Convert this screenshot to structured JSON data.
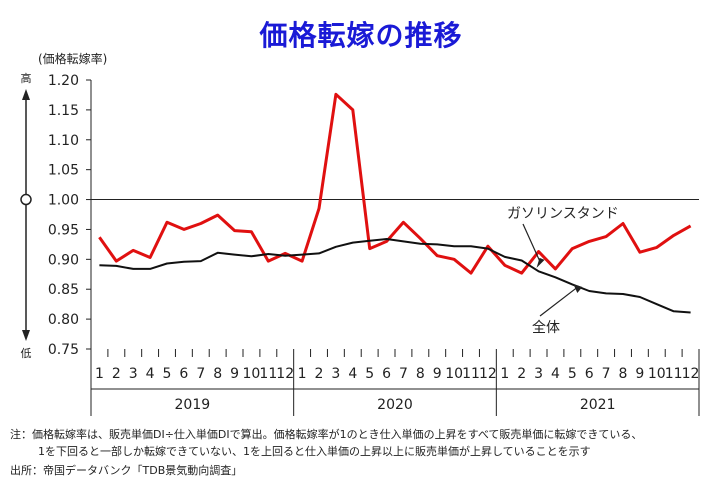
{
  "chart_data": {
    "type": "line",
    "title": "価格転嫁の推移",
    "ylabel": "(価格転嫁率)",
    "high_label": "高",
    "low_label": "低",
    "ylim": [
      0.75,
      1.2
    ],
    "yticks": [
      1.2,
      1.15,
      1.1,
      1.05,
      1.0,
      0.95,
      0.9,
      0.85,
      0.8,
      0.75
    ],
    "ytick_labels": [
      "1.20",
      "1.15",
      "1.10",
      "1.05",
      "1.00",
      "0.95",
      "0.90",
      "0.85",
      "0.80",
      "0.75"
    ],
    "reference_line": 1.0,
    "months": [
      "1",
      "2",
      "3",
      "4",
      "5",
      "6",
      "7",
      "8",
      "9",
      "10",
      "11",
      "12",
      "1",
      "2",
      "3",
      "4",
      "5",
      "6",
      "7",
      "8",
      "9",
      "10",
      "11",
      "12",
      "1",
      "2",
      "3",
      "4",
      "5",
      "6",
      "7",
      "8",
      "9",
      "10",
      "11",
      "12"
    ],
    "years": [
      "2019",
      "2020",
      "2021"
    ],
    "series": [
      {
        "name": "ガソリンスタンド",
        "color": "#e01010",
        "values": [
          0.937,
          0.897,
          0.915,
          0.903,
          0.962,
          0.95,
          0.96,
          0.974,
          0.948,
          0.946,
          0.897,
          0.91,
          0.897,
          0.985,
          1.176,
          1.15,
          0.918,
          0.93,
          0.962,
          0.935,
          0.906,
          0.9,
          0.877,
          0.922,
          0.89,
          0.877,
          0.913,
          0.884,
          0.918,
          0.93,
          0.938,
          0.96,
          0.912,
          0.92,
          0.94,
          0.956
        ]
      },
      {
        "name": "全体",
        "color": "#111111",
        "values": [
          0.89,
          0.889,
          0.884,
          0.884,
          0.893,
          0.896,
          0.897,
          0.911,
          0.908,
          0.905,
          0.909,
          0.906,
          0.908,
          0.91,
          0.921,
          0.928,
          0.931,
          0.934,
          0.93,
          0.926,
          0.925,
          0.922,
          0.922,
          0.918,
          0.904,
          0.898,
          0.88,
          0.87,
          0.858,
          0.847,
          0.843,
          0.842,
          0.837,
          0.825,
          0.813,
          0.811
        ]
      }
    ],
    "annotations": [
      {
        "text": "ガソリンスタンド",
        "series": "ガソリンスタンド"
      },
      {
        "text": "全体",
        "series": "全体"
      }
    ]
  },
  "notes": {
    "note1": "注：価格転嫁率は、販売単価DI÷仕入単価DIで算出。価格転嫁率が1のとき仕入単価の上昇をすべて販売単価に転嫁できている、",
    "note2": "1を下回ると一部しか転嫁できていない、1を上回ると仕入単価の上昇以上に販売単価が上昇していることを示す",
    "source": "出所：帝国データバンク「TDB景気動向調査」"
  }
}
